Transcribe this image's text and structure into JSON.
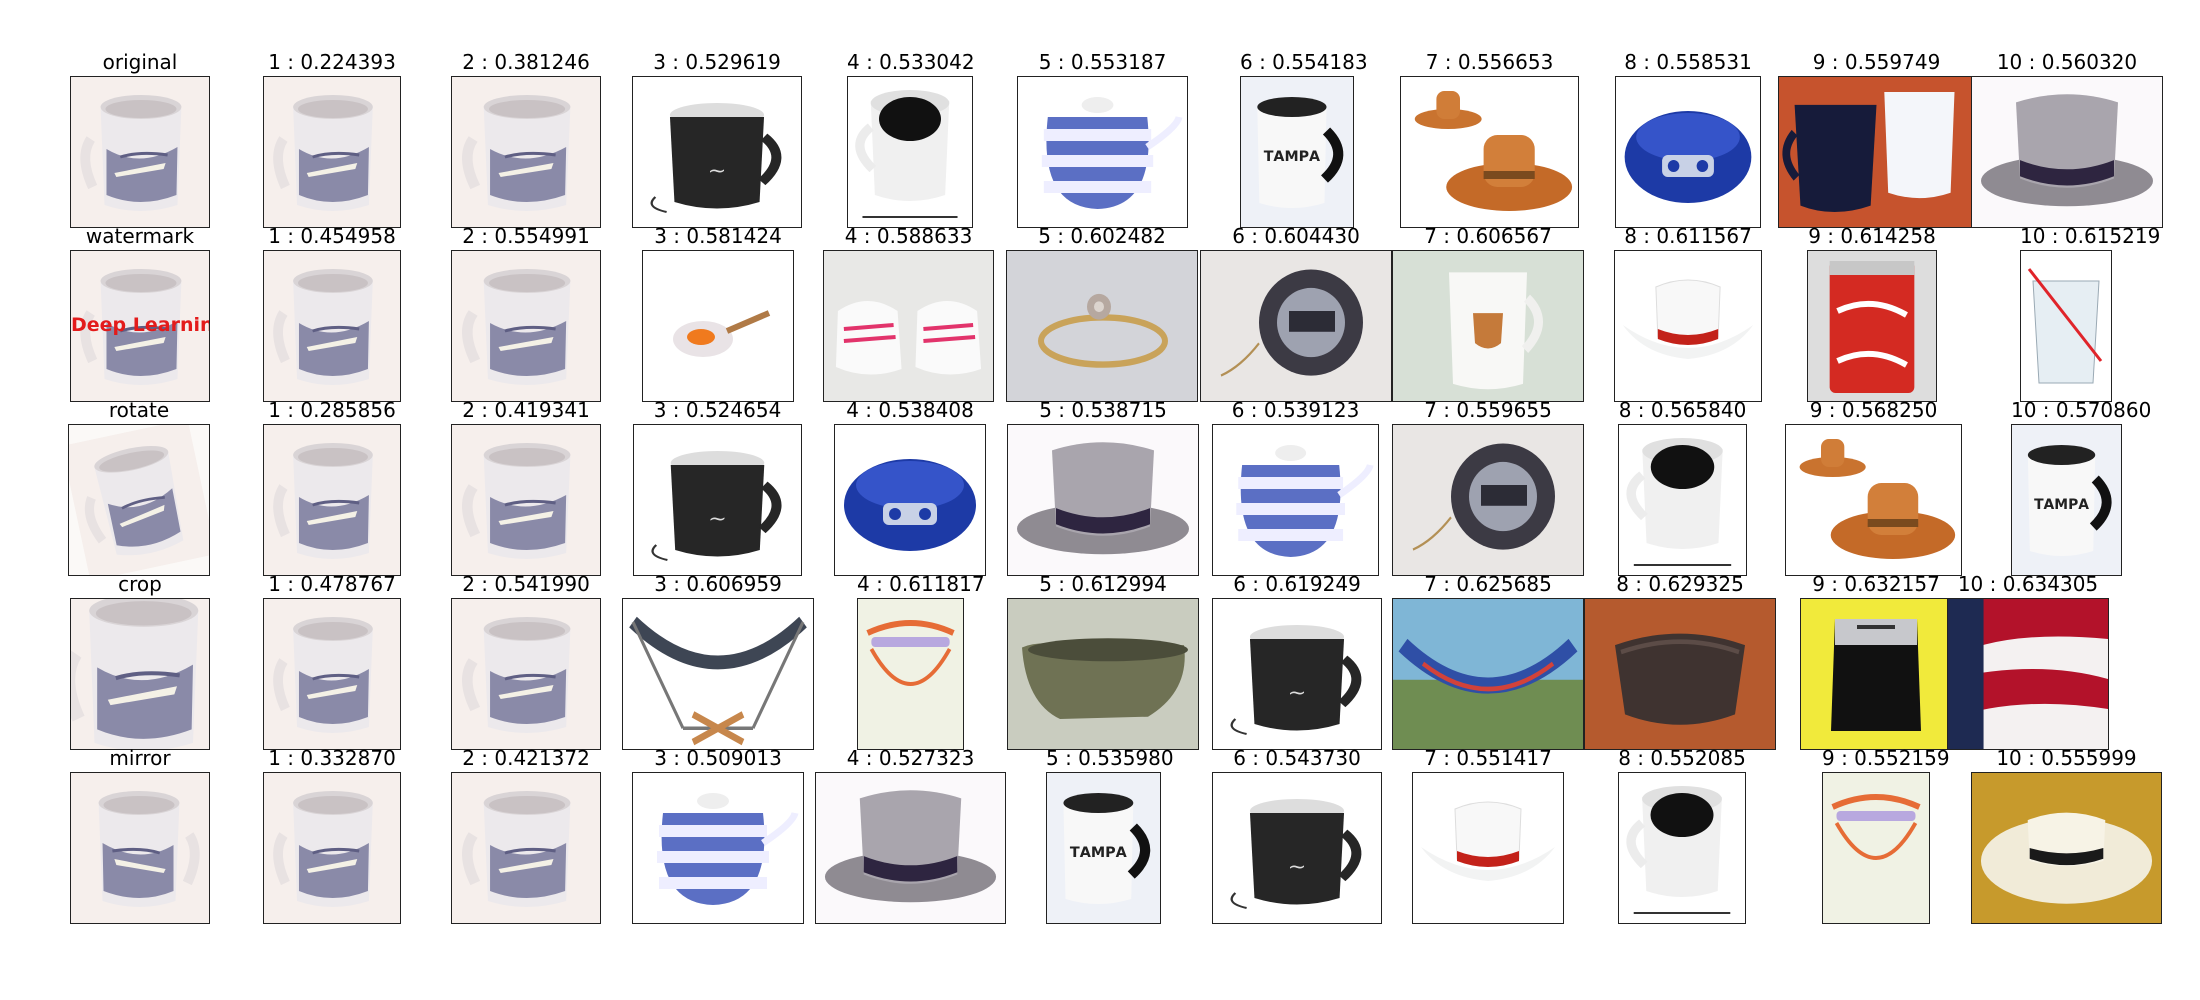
{
  "rows": [
    {
      "query_label": "original",
      "results": [
        {
          "label": "1 : 0.224393",
          "icon": "mug-icon"
        },
        {
          "label": "2 : 0.381246",
          "icon": "mug-icon"
        },
        {
          "label": "3 : 0.529619",
          "icon": "black-cozy-mug-icon"
        },
        {
          "label": "4 : 0.533042",
          "icon": "coffee-cup-icon"
        },
        {
          "label": "5 : 0.553187",
          "icon": "striped-teapot-icon"
        },
        {
          "label": "6 : 0.554183",
          "icon": "tampa-bay-mug-icon"
        },
        {
          "label": "7 : 0.556653",
          "icon": "cowboy-hat-figurine-icon"
        },
        {
          "label": "8 : 0.558531",
          "icon": "cd-player-icon"
        },
        {
          "label": "9 : 0.559749",
          "icon": "two-cups-icon"
        },
        {
          "label": "10 : 0.560320",
          "icon": "top-hat-icon"
        }
      ]
    },
    {
      "query_label": "watermark",
      "watermark_text": "Deep Learning",
      "results": [
        {
          "label": "1 : 0.454958",
          "icon": "mug-icon"
        },
        {
          "label": "2 : 0.554991",
          "icon": "mug-icon"
        },
        {
          "label": "3 : 0.581424",
          "icon": "frying-pan-icon"
        },
        {
          "label": "4 : 0.588633",
          "icon": "baby-shoes-icon"
        },
        {
          "label": "5 : 0.602482",
          "icon": "ring-icon"
        },
        {
          "label": "6 : 0.604430",
          "icon": "yoyo-icon"
        },
        {
          "label": "7 : 0.606567",
          "icon": "crest-mug-icon"
        },
        {
          "label": "8 : 0.611567",
          "icon": "white-cowboy-hat-icon"
        },
        {
          "label": "9 : 0.614258",
          "icon": "cola-can-icon"
        },
        {
          "label": "10 : 0.615219",
          "icon": "water-glass-icon"
        }
      ]
    },
    {
      "query_label": "rotate",
      "results": [
        {
          "label": "1 : 0.285856",
          "icon": "mug-icon"
        },
        {
          "label": "2 : 0.419341",
          "icon": "mug-icon"
        },
        {
          "label": "3 : 0.524654",
          "icon": "black-cozy-mug-icon"
        },
        {
          "label": "4 : 0.538408",
          "icon": "cd-player-icon"
        },
        {
          "label": "5 : 0.538715",
          "icon": "top-hat-icon"
        },
        {
          "label": "6 : 0.539123",
          "icon": "striped-teapot-icon"
        },
        {
          "label": "7 : 0.559655",
          "icon": "yoyo-icon"
        },
        {
          "label": "8 : 0.565840",
          "icon": "coffee-cup-icon"
        },
        {
          "label": "9 : 0.568250",
          "icon": "cowboy-hat-figurine-icon"
        },
        {
          "label": "10 : 0.570860",
          "icon": "tampa-bay-mug-icon"
        }
      ]
    },
    {
      "query_label": "crop",
      "results": [
        {
          "label": "1 : 0.478767",
          "icon": "mug-icon"
        },
        {
          "label": "2 : 0.541990",
          "icon": "mug-icon"
        },
        {
          "label": "3 : 0.606959",
          "icon": "hammock-stand-icon"
        },
        {
          "label": "4 : 0.611817",
          "icon": "lamp-icon"
        },
        {
          "label": "5 : 0.612994",
          "icon": "bathtub-icon"
        },
        {
          "label": "6 : 0.619249",
          "icon": "black-cozy-mug-icon"
        },
        {
          "label": "7 : 0.625685",
          "icon": "hammock-beach-icon"
        },
        {
          "label": "8 : 0.629325",
          "icon": "saddle-pad-icon"
        },
        {
          "label": "9 : 0.632157",
          "icon": "paper-shredder-icon"
        },
        {
          "label": "10 : 0.634305",
          "icon": "flag-icon"
        }
      ]
    },
    {
      "query_label": "mirror",
      "results": [
        {
          "label": "1 : 0.332870",
          "icon": "mug-icon"
        },
        {
          "label": "2 : 0.421372",
          "icon": "mug-icon"
        },
        {
          "label": "3 : 0.509013",
          "icon": "striped-teapot-icon"
        },
        {
          "label": "4 : 0.527323",
          "icon": "top-hat-icon"
        },
        {
          "label": "5 : 0.535980",
          "icon": "tampa-bay-mug-icon"
        },
        {
          "label": "6 : 0.543730",
          "icon": "black-cozy-mug-icon"
        },
        {
          "label": "7 : 0.551417",
          "icon": "white-cowboy-hat-icon"
        },
        {
          "label": "8 : 0.552085",
          "icon": "coffee-cup-icon"
        },
        {
          "label": "9 : 0.552159",
          "icon": "lamp-icon"
        },
        {
          "label": "10 : 0.555999",
          "icon": "straw-hat-icon"
        }
      ]
    }
  ]
}
